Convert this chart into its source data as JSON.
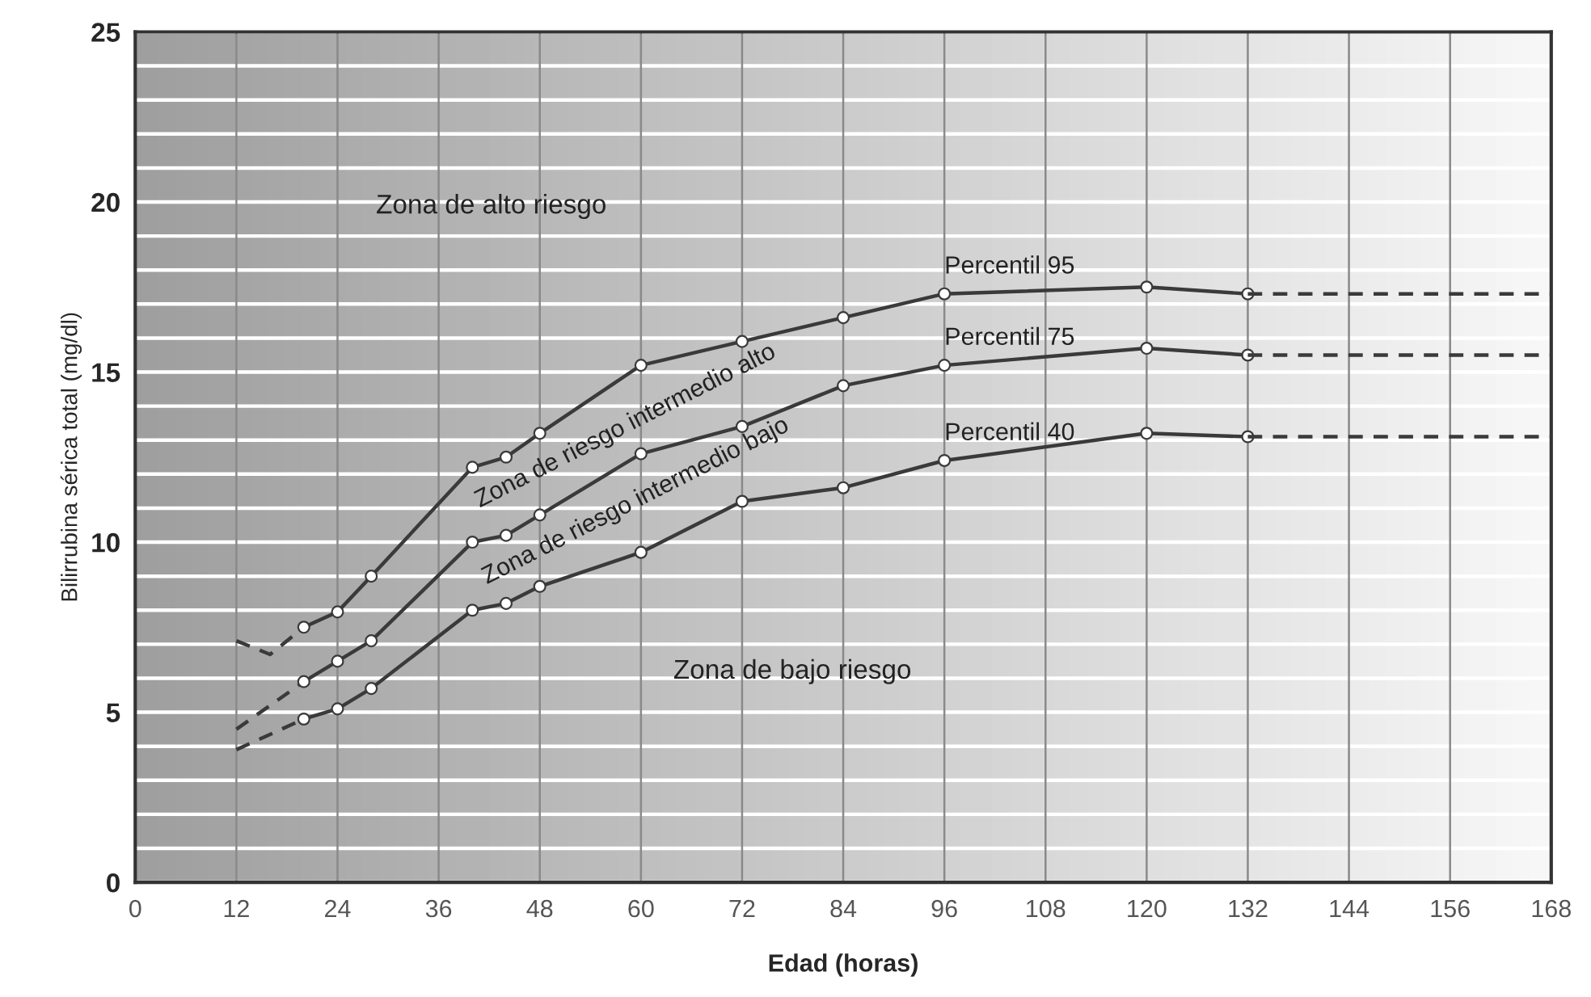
{
  "chart_data": {
    "type": "line",
    "xlabel": "Edad (horas)",
    "ylabel": "Bilirrubina sérica total (mg/dl)",
    "xlim": [
      0,
      168
    ],
    "ylim": [
      0,
      25
    ],
    "xticks": [
      0,
      12,
      24,
      36,
      48,
      60,
      72,
      84,
      96,
      108,
      120,
      132,
      144,
      156,
      168
    ],
    "yticks": [
      0,
      {
        "value": 1,
        "label": null
      },
      {
        "value": 2,
        "label": null
      },
      {
        "value": 3,
        "label": null
      },
      {
        "value": 4,
        "label": null
      },
      5,
      {
        "value": 6,
        "label": null
      },
      {
        "value": 7,
        "label": null
      },
      {
        "value": 8,
        "label": null
      },
      {
        "value": 9,
        "label": null
      },
      10,
      {
        "value": 11,
        "label": null
      },
      {
        "value": 12,
        "label": null
      },
      {
        "value": 13,
        "label": null
      },
      {
        "value": 14,
        "label": null
      },
      15,
      {
        "value": 16,
        "label": null
      },
      {
        "value": 17,
        "label": null
      },
      {
        "value": 18,
        "label": null
      },
      {
        "value": 19,
        "label": null
      },
      20,
      {
        "value": 21,
        "label": null
      },
      {
        "value": 22,
        "label": null
      },
      {
        "value": 23,
        "label": null
      },
      {
        "value": 24,
        "label": null
      },
      25
    ],
    "grid": true,
    "series": [
      {
        "color": "#3a3a3a",
        "line_style": "dashed",
        "x": [
          12,
          16,
          20
        ],
        "values": [
          7.1,
          6.7,
          7.5
        ]
      },
      {
        "name": "Percentil 95",
        "color": "#3a3a3a",
        "line_style": "solid",
        "marker": "circle",
        "x": [
          20,
          24,
          28,
          40,
          44,
          48,
          60,
          72,
          84,
          96,
          120,
          132
        ],
        "values": [
          7.5,
          7.95,
          9.0,
          12.2,
          12.5,
          13.2,
          15.2,
          15.9,
          16.6,
          17.3,
          17.5,
          17.3
        ]
      },
      {
        "color": "#3a3a3a",
        "line_style": "dashed",
        "x": [
          132,
          168
        ],
        "values": [
          17.3,
          17.3
        ]
      },
      {
        "color": "#3a3a3a",
        "line_style": "dashed",
        "x": [
          12,
          20
        ],
        "values": [
          4.5,
          5.9
        ]
      },
      {
        "name": "Percentil 75",
        "color": "#3a3a3a",
        "line_style": "solid",
        "marker": "circle",
        "x": [
          20,
          24,
          28,
          40,
          44,
          48,
          60,
          72,
          84,
          96,
          120,
          132
        ],
        "values": [
          5.9,
          6.5,
          7.1,
          10.0,
          10.2,
          10.8,
          12.6,
          13.4,
          14.6,
          15.2,
          15.7,
          15.5
        ]
      },
      {
        "color": "#3a3a3a",
        "line_style": "dashed",
        "x": [
          132,
          168
        ],
        "values": [
          15.5,
          15.5
        ]
      },
      {
        "color": "#3a3a3a",
        "line_style": "dashed",
        "x": [
          12,
          20
        ],
        "values": [
          3.9,
          4.8
        ]
      },
      {
        "name": "Percentil 40",
        "color": "#3a3a3a",
        "line_style": "solid",
        "marker": "circle",
        "x": [
          20,
          24,
          28,
          40,
          44,
          48,
          60,
          72,
          84,
          96,
          120,
          132
        ],
        "values": [
          4.8,
          5.1,
          5.7,
          8.0,
          8.2,
          8.7,
          9.7,
          11.2,
          11.6,
          12.4,
          13.2,
          13.1
        ]
      },
      {
        "color": "#3a3a3a",
        "line_style": "dashed",
        "x": [
          132,
          168
        ],
        "values": [
          13.1,
          13.1
        ]
      }
    ],
    "annotations": [
      "Zona de alto riesgo",
      "Zona de riesgo intermedio alto",
      "Zona de riesgo intermedio bajo",
      "Zona de bajo riesgo"
    ]
  }
}
